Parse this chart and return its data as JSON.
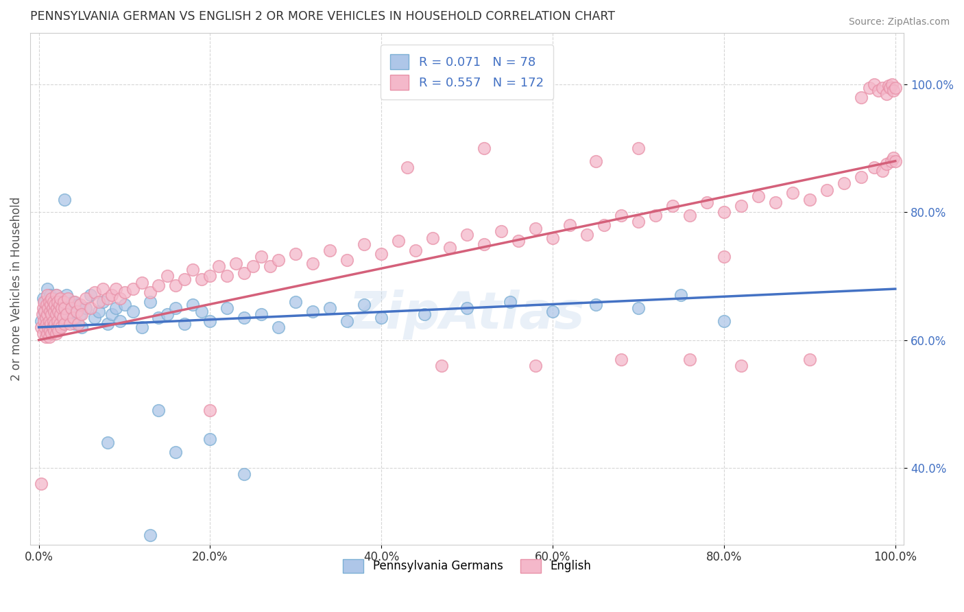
{
  "title": "PENNSYLVANIA GERMAN VS ENGLISH 2 OR MORE VEHICLES IN HOUSEHOLD CORRELATION CHART",
  "source": "Source: ZipAtlas.com",
  "ylabel": "2 or more Vehicles in Household",
  "xlim": [
    -0.01,
    1.01
  ],
  "ylim": [
    0.28,
    1.08
  ],
  "watermark": "ZipAtlas",
  "pa_german_color": "#aec6e8",
  "pa_german_edge": "#7bafd4",
  "pa_german_line_color": "#4472c4",
  "english_color": "#f4b8ca",
  "english_edge": "#e891a8",
  "english_line_color": "#d4607a",
  "background_color": "#ffffff",
  "grid_color": "#cccccc",
  "title_color": "#333333",
  "tick_color": "#4472c4",
  "seed": 42,
  "pa_german_points": [
    [
      0.003,
      0.63
    ],
    [
      0.005,
      0.665
    ],
    [
      0.006,
      0.645
    ],
    [
      0.007,
      0.66
    ],
    [
      0.008,
      0.62
    ],
    [
      0.009,
      0.64
    ],
    [
      0.01,
      0.65
    ],
    [
      0.01,
      0.68
    ],
    [
      0.011,
      0.655
    ],
    [
      0.012,
      0.63
    ],
    [
      0.013,
      0.67
    ],
    [
      0.014,
      0.645
    ],
    [
      0.015,
      0.62
    ],
    [
      0.015,
      0.66
    ],
    [
      0.016,
      0.64
    ],
    [
      0.017,
      0.665
    ],
    [
      0.018,
      0.625
    ],
    [
      0.019,
      0.65
    ],
    [
      0.02,
      0.67
    ],
    [
      0.021,
      0.635
    ],
    [
      0.022,
      0.655
    ],
    [
      0.023,
      0.645
    ],
    [
      0.024,
      0.62
    ],
    [
      0.025,
      0.66
    ],
    [
      0.026,
      0.64
    ],
    [
      0.028,
      0.63
    ],
    [
      0.03,
      0.65
    ],
    [
      0.032,
      0.67
    ],
    [
      0.035,
      0.635
    ],
    [
      0.038,
      0.645
    ],
    [
      0.04,
      0.66
    ],
    [
      0.042,
      0.625
    ],
    [
      0.045,
      0.655
    ],
    [
      0.048,
      0.64
    ],
    [
      0.05,
      0.62
    ],
    [
      0.055,
      0.65
    ],
    [
      0.06,
      0.67
    ],
    [
      0.065,
      0.635
    ],
    [
      0.07,
      0.645
    ],
    [
      0.075,
      0.66
    ],
    [
      0.08,
      0.625
    ],
    [
      0.085,
      0.64
    ],
    [
      0.09,
      0.65
    ],
    [
      0.095,
      0.63
    ],
    [
      0.1,
      0.655
    ],
    [
      0.11,
      0.645
    ],
    [
      0.12,
      0.62
    ],
    [
      0.13,
      0.66
    ],
    [
      0.14,
      0.635
    ],
    [
      0.15,
      0.64
    ],
    [
      0.16,
      0.65
    ],
    [
      0.17,
      0.625
    ],
    [
      0.18,
      0.655
    ],
    [
      0.19,
      0.645
    ],
    [
      0.2,
      0.63
    ],
    [
      0.22,
      0.65
    ],
    [
      0.24,
      0.635
    ],
    [
      0.26,
      0.64
    ],
    [
      0.28,
      0.62
    ],
    [
      0.3,
      0.66
    ],
    [
      0.32,
      0.645
    ],
    [
      0.34,
      0.65
    ],
    [
      0.36,
      0.63
    ],
    [
      0.38,
      0.655
    ],
    [
      0.4,
      0.635
    ],
    [
      0.45,
      0.64
    ],
    [
      0.5,
      0.65
    ],
    [
      0.55,
      0.66
    ],
    [
      0.6,
      0.645
    ],
    [
      0.65,
      0.655
    ],
    [
      0.7,
      0.65
    ],
    [
      0.75,
      0.67
    ],
    [
      0.8,
      0.63
    ],
    [
      0.03,
      0.82
    ],
    [
      0.13,
      0.295
    ],
    [
      0.08,
      0.44
    ],
    [
      0.14,
      0.49
    ],
    [
      0.16,
      0.425
    ],
    [
      0.2,
      0.445
    ],
    [
      0.24,
      0.39
    ]
  ],
  "english_points": [
    [
      0.003,
      0.62
    ],
    [
      0.004,
      0.64
    ],
    [
      0.005,
      0.61
    ],
    [
      0.005,
      0.65
    ],
    [
      0.006,
      0.63
    ],
    [
      0.006,
      0.66
    ],
    [
      0.007,
      0.62
    ],
    [
      0.007,
      0.645
    ],
    [
      0.008,
      0.605
    ],
    [
      0.008,
      0.635
    ],
    [
      0.009,
      0.625
    ],
    [
      0.009,
      0.655
    ],
    [
      0.01,
      0.61
    ],
    [
      0.01,
      0.64
    ],
    [
      0.01,
      0.67
    ],
    [
      0.011,
      0.62
    ],
    [
      0.011,
      0.65
    ],
    [
      0.012,
      0.605
    ],
    [
      0.012,
      0.63
    ],
    [
      0.012,
      0.66
    ],
    [
      0.013,
      0.615
    ],
    [
      0.013,
      0.645
    ],
    [
      0.014,
      0.625
    ],
    [
      0.014,
      0.655
    ],
    [
      0.015,
      0.61
    ],
    [
      0.015,
      0.64
    ],
    [
      0.015,
      0.665
    ],
    [
      0.016,
      0.62
    ],
    [
      0.016,
      0.65
    ],
    [
      0.017,
      0.63
    ],
    [
      0.017,
      0.66
    ],
    [
      0.018,
      0.615
    ],
    [
      0.018,
      0.645
    ],
    [
      0.019,
      0.625
    ],
    [
      0.019,
      0.655
    ],
    [
      0.02,
      0.61
    ],
    [
      0.02,
      0.64
    ],
    [
      0.02,
      0.67
    ],
    [
      0.021,
      0.62
    ],
    [
      0.021,
      0.65
    ],
    [
      0.022,
      0.63
    ],
    [
      0.022,
      0.66
    ],
    [
      0.023,
      0.615
    ],
    [
      0.023,
      0.645
    ],
    [
      0.024,
      0.625
    ],
    [
      0.024,
      0.655
    ],
    [
      0.025,
      0.64
    ],
    [
      0.025,
      0.665
    ],
    [
      0.026,
      0.62
    ],
    [
      0.027,
      0.65
    ],
    [
      0.028,
      0.635
    ],
    [
      0.029,
      0.66
    ],
    [
      0.03,
      0.625
    ],
    [
      0.03,
      0.65
    ],
    [
      0.032,
      0.64
    ],
    [
      0.034,
      0.665
    ],
    [
      0.036,
      0.625
    ],
    [
      0.038,
      0.65
    ],
    [
      0.04,
      0.635
    ],
    [
      0.042,
      0.66
    ],
    [
      0.044,
      0.645
    ],
    [
      0.046,
      0.625
    ],
    [
      0.048,
      0.655
    ],
    [
      0.05,
      0.64
    ],
    [
      0.055,
      0.665
    ],
    [
      0.06,
      0.65
    ],
    [
      0.065,
      0.675
    ],
    [
      0.07,
      0.66
    ],
    [
      0.075,
      0.68
    ],
    [
      0.08,
      0.665
    ],
    [
      0.085,
      0.67
    ],
    [
      0.09,
      0.68
    ],
    [
      0.095,
      0.665
    ],
    [
      0.1,
      0.675
    ],
    [
      0.11,
      0.68
    ],
    [
      0.12,
      0.69
    ],
    [
      0.13,
      0.675
    ],
    [
      0.14,
      0.685
    ],
    [
      0.15,
      0.7
    ],
    [
      0.16,
      0.685
    ],
    [
      0.17,
      0.695
    ],
    [
      0.18,
      0.71
    ],
    [
      0.19,
      0.695
    ],
    [
      0.2,
      0.7
    ],
    [
      0.21,
      0.715
    ],
    [
      0.22,
      0.7
    ],
    [
      0.23,
      0.72
    ],
    [
      0.24,
      0.705
    ],
    [
      0.25,
      0.715
    ],
    [
      0.26,
      0.73
    ],
    [
      0.27,
      0.715
    ],
    [
      0.28,
      0.725
    ],
    [
      0.3,
      0.735
    ],
    [
      0.32,
      0.72
    ],
    [
      0.34,
      0.74
    ],
    [
      0.36,
      0.725
    ],
    [
      0.38,
      0.75
    ],
    [
      0.4,
      0.735
    ],
    [
      0.42,
      0.755
    ],
    [
      0.44,
      0.74
    ],
    [
      0.46,
      0.76
    ],
    [
      0.48,
      0.745
    ],
    [
      0.5,
      0.765
    ],
    [
      0.52,
      0.75
    ],
    [
      0.54,
      0.77
    ],
    [
      0.56,
      0.755
    ],
    [
      0.58,
      0.775
    ],
    [
      0.6,
      0.76
    ],
    [
      0.62,
      0.78
    ],
    [
      0.64,
      0.765
    ],
    [
      0.66,
      0.78
    ],
    [
      0.68,
      0.795
    ],
    [
      0.7,
      0.785
    ],
    [
      0.72,
      0.795
    ],
    [
      0.74,
      0.81
    ],
    [
      0.76,
      0.795
    ],
    [
      0.78,
      0.815
    ],
    [
      0.8,
      0.8
    ],
    [
      0.82,
      0.81
    ],
    [
      0.84,
      0.825
    ],
    [
      0.86,
      0.815
    ],
    [
      0.88,
      0.83
    ],
    [
      0.9,
      0.82
    ],
    [
      0.92,
      0.835
    ],
    [
      0.94,
      0.845
    ],
    [
      0.96,
      0.855
    ],
    [
      0.975,
      0.87
    ],
    [
      0.985,
      0.865
    ],
    [
      0.99,
      0.875
    ],
    [
      0.995,
      0.88
    ],
    [
      0.998,
      0.885
    ],
    [
      1.0,
      0.88
    ],
    [
      0.96,
      0.98
    ],
    [
      0.97,
      0.995
    ],
    [
      0.975,
      1.0
    ],
    [
      0.98,
      0.99
    ],
    [
      0.985,
      0.995
    ],
    [
      0.99,
      0.985
    ],
    [
      0.992,
      0.998
    ],
    [
      0.994,
      0.995
    ],
    [
      0.996,
      1.0
    ],
    [
      0.998,
      0.99
    ],
    [
      1.0,
      0.995
    ],
    [
      0.65,
      0.88
    ],
    [
      0.7,
      0.9
    ],
    [
      0.52,
      0.9
    ],
    [
      0.43,
      0.87
    ],
    [
      0.003,
      0.375
    ],
    [
      0.2,
      0.49
    ],
    [
      0.47,
      0.56
    ],
    [
      0.58,
      0.56
    ],
    [
      0.68,
      0.57
    ],
    [
      0.8,
      0.73
    ],
    [
      0.82,
      0.56
    ],
    [
      0.9,
      0.57
    ],
    [
      0.76,
      0.57
    ]
  ]
}
